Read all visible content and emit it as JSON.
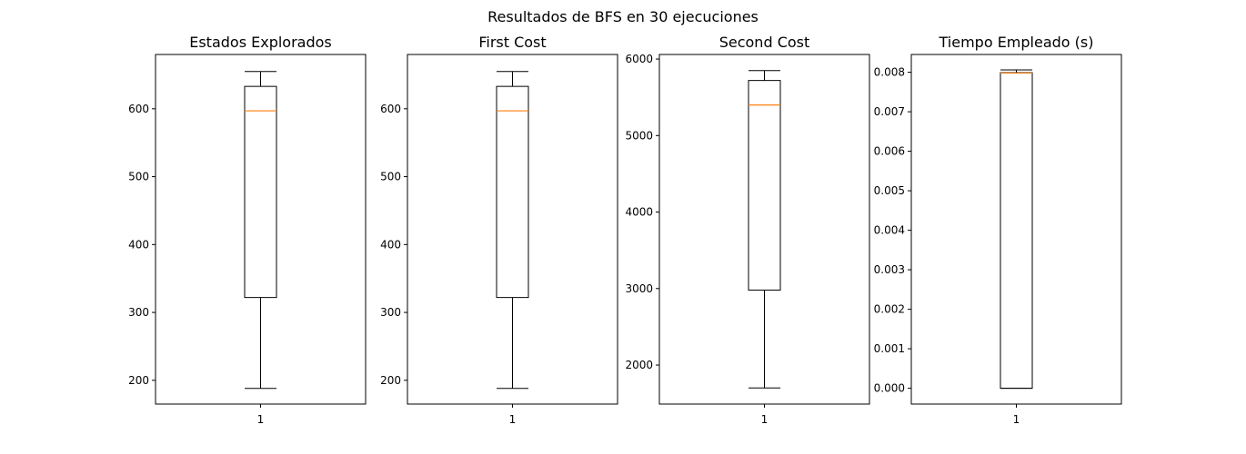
{
  "figure": {
    "suptitle": "Resultados de BFS en 30 ejecuciones"
  },
  "chart_data": [
    {
      "type": "box",
      "title": "Estados Explorados",
      "categories": [
        "1"
      ],
      "yticks": [
        "200",
        "300",
        "400",
        "500",
        "600"
      ],
      "ytick_values": [
        200,
        300,
        400,
        500,
        600
      ],
      "ylim": [
        165,
        680
      ],
      "box": {
        "whisker_low": 188,
        "q1": 322,
        "median": 597,
        "q3": 633,
        "whisker_high": 655
      },
      "colors": {
        "box": "#000000",
        "median": "#ff7f0e"
      }
    },
    {
      "type": "box",
      "title": "First Cost",
      "categories": [
        "1"
      ],
      "yticks": [
        "200",
        "300",
        "400",
        "500",
        "600"
      ],
      "ytick_values": [
        200,
        300,
        400,
        500,
        600
      ],
      "ylim": [
        165,
        680
      ],
      "box": {
        "whisker_low": 188,
        "q1": 322,
        "median": 597,
        "q3": 633,
        "whisker_high": 655
      },
      "colors": {
        "box": "#000000",
        "median": "#ff7f0e"
      }
    },
    {
      "type": "box",
      "title": "Second Cost",
      "categories": [
        "1"
      ],
      "yticks": [
        "2000",
        "3000",
        "4000",
        "5000",
        "6000"
      ],
      "ytick_values": [
        2000,
        3000,
        4000,
        5000,
        6000
      ],
      "ylim": [
        1490,
        6060
      ],
      "box": {
        "whisker_low": 1700,
        "q1": 2980,
        "median": 5400,
        "q3": 5720,
        "whisker_high": 5850
      },
      "colors": {
        "box": "#000000",
        "median": "#ff7f0e"
      }
    },
    {
      "type": "box",
      "title": "Tiempo Empleado (s)",
      "categories": [
        "1"
      ],
      "yticks": [
        "0.000",
        "0.001",
        "0.002",
        "0.003",
        "0.004",
        "0.005",
        "0.006",
        "0.007",
        "0.008"
      ],
      "ytick_values": [
        0,
        0.001,
        0.002,
        0.003,
        0.004,
        0.005,
        0.006,
        0.007,
        0.008
      ],
      "ylim": [
        -0.0004,
        0.00845
      ],
      "box": {
        "whisker_low": 0,
        "q1": 0,
        "median": 0.00798,
        "q3": 0.00799,
        "whisker_high": 0.00806
      },
      "colors": {
        "box": "#000000",
        "median": "#ff7f0e"
      }
    }
  ]
}
